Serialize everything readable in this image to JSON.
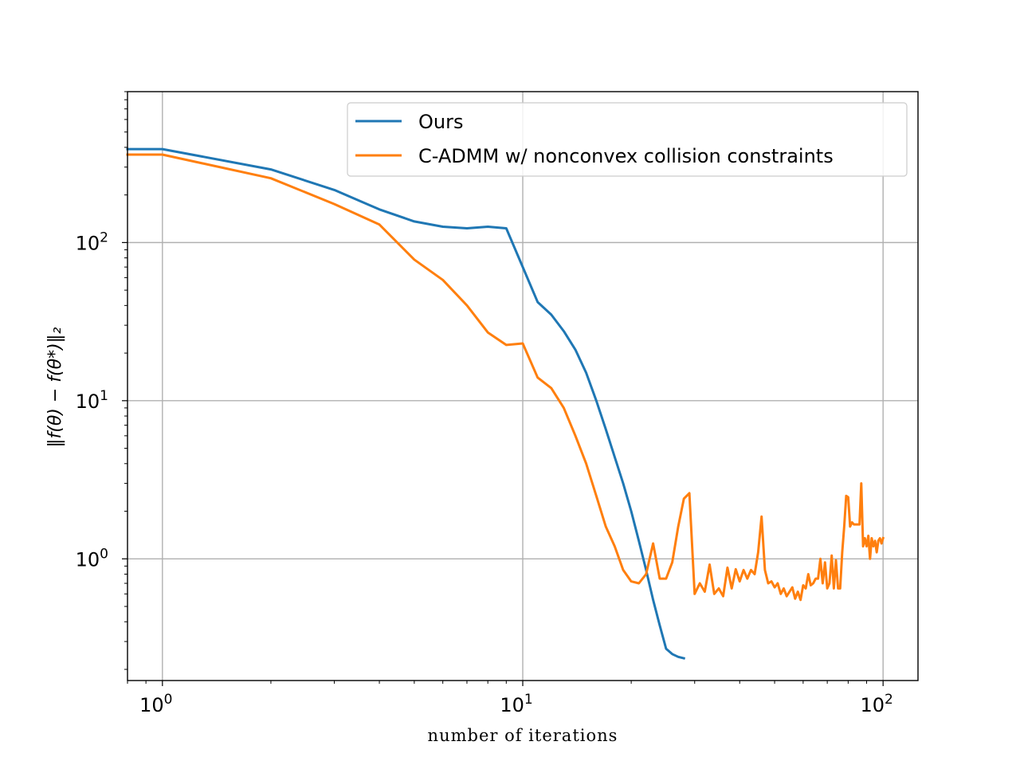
{
  "chart_data": {
    "type": "line",
    "title": "",
    "xlabel": "number of iterations",
    "ylabel": "‖f(θ) − f(θ*)‖₂",
    "xscale": "log",
    "yscale": "log",
    "xlim": [
      0.8,
      125
    ],
    "ylim": [
      0.17,
      900
    ],
    "grid": true,
    "legend": "top-right",
    "x_ticks": [
      {
        "value": 1,
        "base": "10",
        "exp": "0"
      },
      {
        "value": 10,
        "base": "10",
        "exp": "1"
      },
      {
        "value": 100,
        "base": "10",
        "exp": "2"
      }
    ],
    "y_ticks": [
      {
        "value": 1,
        "base": "10",
        "exp": "0"
      },
      {
        "value": 10,
        "base": "10",
        "exp": "1"
      },
      {
        "value": 100,
        "base": "10",
        "exp": "2"
      }
    ],
    "series": [
      {
        "name": "Ours",
        "color": "#1f77b4",
        "x": [
          0.8,
          1,
          2,
          3,
          4,
          5,
          6,
          7,
          8,
          9,
          10,
          11,
          12,
          13,
          14,
          15,
          16,
          17,
          18,
          19,
          20,
          21,
          22,
          23,
          24,
          25,
          26,
          27,
          28
        ],
        "y": [
          390,
          390,
          290,
          215,
          162,
          136,
          126,
          123,
          126,
          123,
          70,
          42,
          35,
          27.5,
          21,
          15,
          10,
          6.6,
          4.4,
          3.0,
          2.0,
          1.3,
          0.85,
          0.55,
          0.38,
          0.27,
          0.25,
          0.24,
          0.235
        ]
      },
      {
        "name": "C-ADMM w/ nonconvex collision constraints",
        "color": "#ff7f0e",
        "x": [
          0.8,
          1,
          2,
          3,
          4,
          5,
          6,
          7,
          8,
          9,
          10,
          11,
          12,
          13,
          14,
          15,
          16,
          17,
          18,
          19,
          20,
          21,
          22,
          23,
          24,
          25,
          26,
          27,
          28,
          29,
          30,
          31,
          32,
          33,
          34,
          35,
          36,
          37,
          38,
          39,
          40,
          41,
          42,
          43,
          44,
          45,
          46,
          47,
          48,
          49,
          50,
          51,
          52,
          53,
          54,
          55,
          56,
          57,
          58,
          59,
          60,
          61,
          62,
          63,
          64,
          65,
          66,
          67,
          68,
          69,
          70,
          71,
          72,
          73,
          74,
          75,
          76,
          77,
          78,
          79,
          80,
          81,
          82,
          83,
          84,
          85,
          86,
          87,
          88,
          89,
          90,
          91,
          92,
          93,
          94,
          95,
          96,
          97,
          98,
          99,
          100
        ],
        "y": [
          360,
          360,
          255,
          175,
          130,
          78,
          58,
          40,
          27,
          22.5,
          23,
          14,
          12,
          9,
          6,
          4,
          2.5,
          1.6,
          1.2,
          0.85,
          0.72,
          0.7,
          0.8,
          1.25,
          0.75,
          0.75,
          0.95,
          1.6,
          2.4,
          2.6,
          0.6,
          0.7,
          0.62,
          0.92,
          0.6,
          0.65,
          0.58,
          0.88,
          0.65,
          0.86,
          0.72,
          0.85,
          0.75,
          0.85,
          0.8,
          1.1,
          1.85,
          0.85,
          0.7,
          0.72,
          0.66,
          0.7,
          0.6,
          0.65,
          0.58,
          0.62,
          0.66,
          0.56,
          0.62,
          0.55,
          0.68,
          0.65,
          0.8,
          0.68,
          0.7,
          0.75,
          0.75,
          1.0,
          0.7,
          0.95,
          0.65,
          0.7,
          1.05,
          0.65,
          0.98,
          0.65,
          0.65,
          1.1,
          1.6,
          2.5,
          2.45,
          1.6,
          1.7,
          1.65,
          1.65,
          1.65,
          1.65,
          3.0,
          1.2,
          1.35,
          1.2,
          1.4,
          1.0,
          1.35,
          1.2,
          1.3,
          1.1,
          1.3,
          1.35,
          1.25,
          1.35
        ]
      }
    ]
  }
}
